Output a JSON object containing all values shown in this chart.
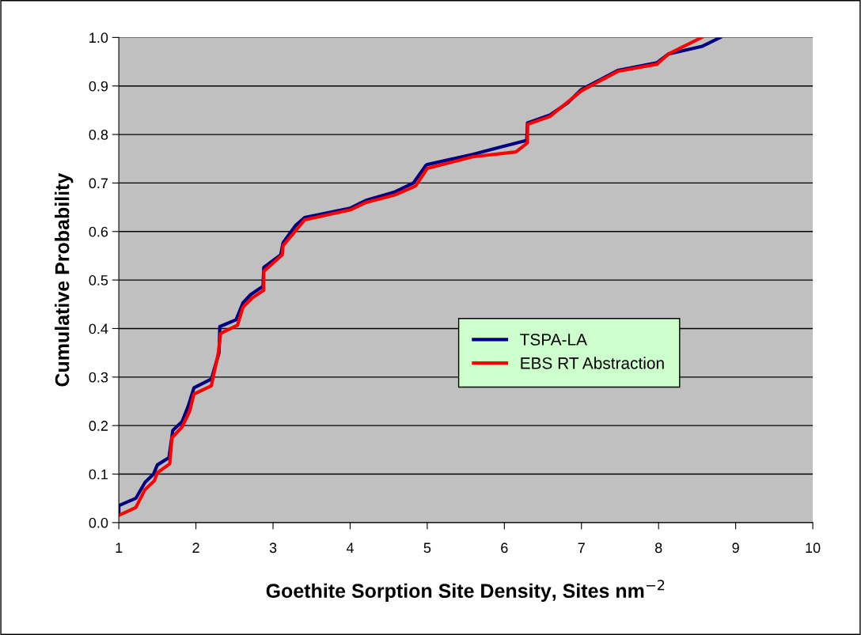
{
  "chart_data": {
    "type": "line",
    "xlabel": "Goethite Sorption Site Density, Sites nm$^{−2}$",
    "ylabel": "Cumulative Probability",
    "xlim": [
      1,
      10
    ],
    "xticks": [
      1,
      2,
      3,
      4,
      5,
      6,
      7,
      8,
      9,
      10
    ],
    "ylim": [
      0,
      1
    ],
    "yticks": [
      {
        "value": 0,
        "label": "0.0"
      },
      0.1,
      0.2,
      0.3,
      0.4,
      0.5,
      0.6,
      0.7,
      0.8,
      0.9,
      {
        "value": 1,
        "label": "1.0"
      }
    ],
    "grid": "y",
    "legend": "center right",
    "marker": "none",
    "line_style": "solid",
    "series": [
      {
        "name": "TSPA-LA",
        "color": "#000080",
        "x": [
          1.0,
          1.0,
          1.22,
          1.34,
          1.45,
          1.5,
          1.65,
          1.7,
          1.82,
          1.9,
          1.975,
          2.2,
          2.3,
          2.31,
          2.52,
          2.61,
          2.71,
          2.87,
          2.88,
          3.1,
          3.13,
          3.29,
          3.41,
          4.0,
          4.2,
          4.57,
          4.82,
          4.98,
          5.0,
          5.59,
          5.9,
          6.29,
          6.3,
          6.59,
          6.82,
          7.0,
          7.47,
          7.98,
          8.13,
          8.57,
          8.8
        ],
        "values": [
          0.02,
          0.035,
          0.05,
          0.083,
          0.1,
          0.119,
          0.134,
          0.19,
          0.208,
          0.24,
          0.278,
          0.296,
          0.35,
          0.404,
          0.418,
          0.453,
          0.47,
          0.487,
          0.526,
          0.552,
          0.577,
          0.612,
          0.629,
          0.648,
          0.664,
          0.681,
          0.7,
          0.736,
          0.738,
          0.759,
          0.772,
          0.788,
          0.824,
          0.84,
          0.865,
          0.893,
          0.932,
          0.948,
          0.966,
          0.982,
          1.0
        ]
      },
      {
        "name": "EBS RT Abstraction",
        "color": "#ff0000",
        "x": [
          1.0,
          1.22,
          1.34,
          1.46,
          1.5,
          1.66,
          1.69,
          1.82,
          1.92,
          1.975,
          2.2,
          2.29,
          2.32,
          2.54,
          2.61,
          2.73,
          2.88,
          2.88,
          3.12,
          3.13,
          3.41,
          4.01,
          4.21,
          4.59,
          4.85,
          5.0,
          5.59,
          6.15,
          6.3,
          6.3,
          6.59,
          7.0,
          7.47,
          7.98,
          8.13,
          8.56
        ],
        "values": [
          0.015,
          0.031,
          0.068,
          0.086,
          0.103,
          0.121,
          0.175,
          0.197,
          0.23,
          0.265,
          0.282,
          0.349,
          0.39,
          0.407,
          0.444,
          0.463,
          0.479,
          0.518,
          0.552,
          0.571,
          0.624,
          0.645,
          0.66,
          0.676,
          0.694,
          0.73,
          0.754,
          0.764,
          0.783,
          0.821,
          0.837,
          0.89,
          0.93,
          0.945,
          0.966,
          1.0
        ]
      }
    ]
  }
}
